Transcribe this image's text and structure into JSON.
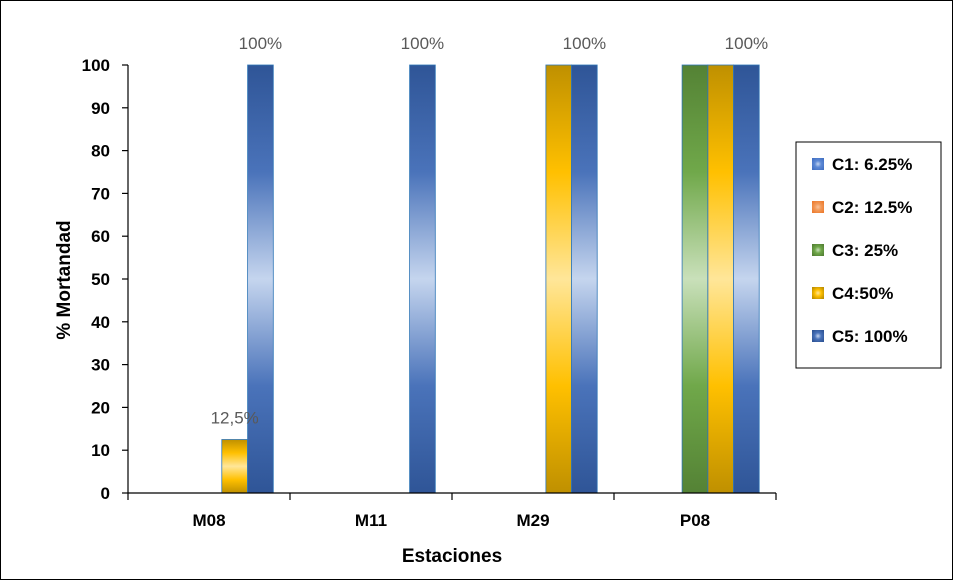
{
  "chart_data": {
    "type": "bar",
    "title": "",
    "xlabel": "Estaciones",
    "ylabel": "% Mortandad",
    "ylim": [
      0,
      100
    ],
    "yticks": [
      0,
      10,
      20,
      30,
      40,
      50,
      60,
      70,
      80,
      90,
      100
    ],
    "categories": [
      "M08",
      "M11",
      "M29",
      "P08"
    ],
    "series": [
      {
        "name": "C1: 6.25%",
        "values": [
          0,
          0,
          0,
          0
        ],
        "color": "#4472C4"
      },
      {
        "name": "C2: 12.5%",
        "values": [
          0,
          0,
          0,
          0
        ],
        "color": "#ED7D31"
      },
      {
        "name": "C3: 25%",
        "values": [
          0,
          0,
          0,
          100
        ],
        "color": "#548235"
      },
      {
        "name": "C4:50%",
        "values": [
          12.5,
          0,
          100,
          100
        ],
        "color": "#BF9000"
      },
      {
        "name": "C5: 100%",
        "values": [
          100,
          100,
          100,
          100
        ],
        "color": "#2F5597"
      }
    ],
    "data_labels": [
      {
        "category": "M08",
        "text": "12,5%"
      },
      {
        "category": "M08",
        "text": "100%"
      },
      {
        "category": "M11",
        "text": "100%"
      },
      {
        "category": "M29",
        "text": "100%"
      },
      {
        "category": "P08",
        "text": "100%"
      }
    ],
    "legend_position": "right",
    "grid": false
  }
}
